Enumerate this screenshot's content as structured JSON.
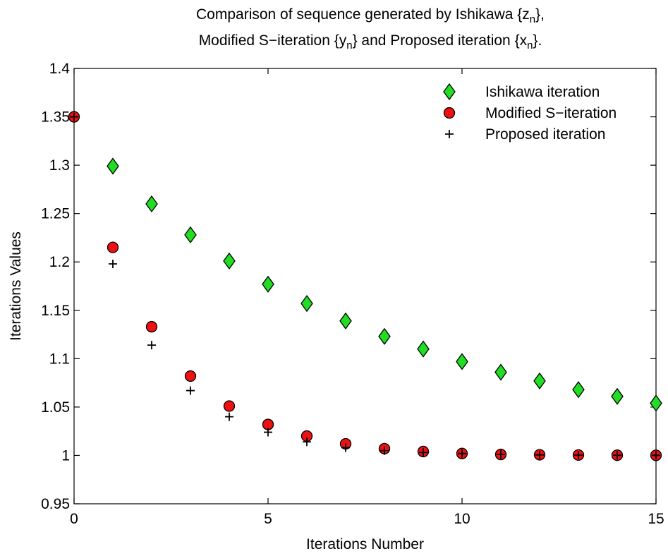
{
  "chart_data": {
    "type": "scatter",
    "title_lines": [
      {
        "parts": [
          {
            "text": "Comparison of sequence generated by Ishikawa {z",
            "sub": false
          },
          {
            "text": "n",
            "sub": true
          },
          {
            "text": "},",
            "sub": false
          }
        ]
      },
      {
        "parts": [
          {
            "text": "Modified S−iteration {y",
            "sub": false
          },
          {
            "text": "n",
            "sub": true
          },
          {
            "text": "} and Proposed iteration {x",
            "sub": false
          },
          {
            "text": "n",
            "sub": true
          },
          {
            "text": "}.",
            "sub": false
          }
        ]
      }
    ],
    "xlabel": "Iterations Number",
    "ylabel": "Iterations Values",
    "xlim": [
      0,
      15
    ],
    "ylim": [
      0.95,
      1.4
    ],
    "xticks": [
      0,
      5,
      10,
      15
    ],
    "xtick_labels": [
      "0",
      "5",
      "10",
      "15"
    ],
    "yticks": [
      0.95,
      1.0,
      1.05,
      1.1,
      1.15,
      1.2,
      1.25,
      1.3,
      1.35,
      1.4
    ],
    "ytick_labels": [
      "0.95",
      "1",
      "1.05",
      "1.1",
      "1.15",
      "1.2",
      "1.25",
      "1.3",
      "1.35",
      "1.4"
    ],
    "grid": false,
    "legend_position": "top-right",
    "series": [
      {
        "name": "Ishikawa iteration",
        "marker": "diamond",
        "color": "#22dd22",
        "x": [
          1,
          2,
          3,
          4,
          5,
          6,
          7,
          8,
          9,
          10,
          11,
          12,
          13,
          14,
          15
        ],
        "y": [
          1.299,
          1.26,
          1.228,
          1.201,
          1.177,
          1.157,
          1.139,
          1.123,
          1.11,
          1.097,
          1.086,
          1.077,
          1.068,
          1.061,
          1.054
        ]
      },
      {
        "name": "Modified S−iteration",
        "marker": "circle",
        "color": "#ee1111",
        "x": [
          0,
          1,
          2,
          3,
          4,
          5,
          6,
          7,
          8,
          9,
          10,
          11,
          12,
          13,
          14,
          15
        ],
        "y": [
          1.35,
          1.215,
          1.133,
          1.082,
          1.051,
          1.032,
          1.02,
          1.012,
          1.007,
          1.004,
          1.002,
          1.001,
          1.0007,
          1.0004,
          1.0002,
          1.0001
        ]
      },
      {
        "name": "Proposed iteration",
        "marker": "plus",
        "color": "#000000",
        "x": [
          0,
          1,
          2,
          3,
          4,
          5,
          6,
          7,
          8,
          9,
          10,
          11,
          12,
          13,
          14,
          15
        ],
        "y": [
          1.35,
          1.198,
          1.114,
          1.067,
          1.04,
          1.024,
          1.014,
          1.008,
          1.005,
          1.003,
          1.002,
          1.001,
          1.0005,
          1.0003,
          1.0002,
          1.0001
        ]
      }
    ]
  }
}
